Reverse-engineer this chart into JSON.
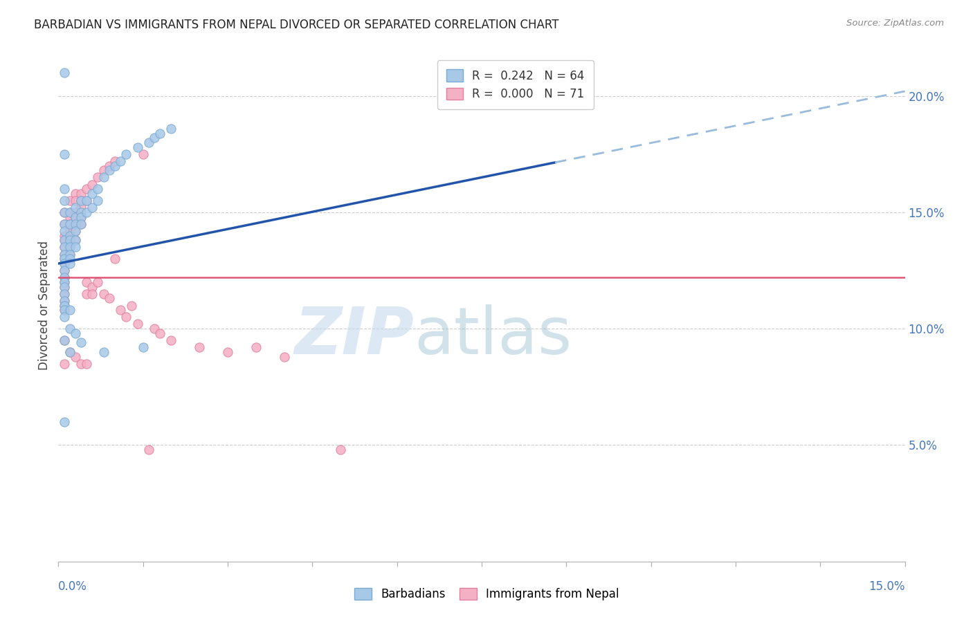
{
  "title": "BARBADIAN VS IMMIGRANTS FROM NEPAL DIVORCED OR SEPARATED CORRELATION CHART",
  "source": "Source: ZipAtlas.com",
  "ylabel": "Divorced or Separated",
  "legend_blue_R": "0.242",
  "legend_blue_N": "64",
  "legend_pink_R": "0.000",
  "legend_pink_N": "71",
  "blue_color": "#A8C8E8",
  "blue_edge_color": "#7AAAD0",
  "pink_color": "#F4B0C4",
  "pink_edge_color": "#E080A0",
  "trend_blue_color": "#2255AA",
  "trend_blue_dash_color": "#99BBDD",
  "trend_pink_color": "#DD4466",
  "right_ytick_labels": [
    "5.0%",
    "10.0%",
    "15.0%",
    "20.0%"
  ],
  "right_ytick_values": [
    0.05,
    0.1,
    0.15,
    0.2
  ],
  "xmin": 0.0,
  "xmax": 0.15,
  "ymin": 0.0,
  "ymax": 0.22,
  "trend_blue_x0": 0.0,
  "trend_blue_y0": 0.128,
  "trend_blue_x1": 0.15,
  "trend_blue_y1": 0.202,
  "trend_blue_solid_end": 0.088,
  "trend_pink_y": 0.122,
  "watermark_zip_color": "#C0D8EC",
  "watermark_atlas_color": "#90B8CC",
  "blue_pts": [
    [
      0.001,
      0.21
    ],
    [
      0.001,
      0.175
    ],
    [
      0.001,
      0.16
    ],
    [
      0.001,
      0.155
    ],
    [
      0.001,
      0.15
    ],
    [
      0.001,
      0.145
    ],
    [
      0.001,
      0.142
    ],
    [
      0.001,
      0.138
    ],
    [
      0.001,
      0.135
    ],
    [
      0.001,
      0.132
    ],
    [
      0.001,
      0.13
    ],
    [
      0.001,
      0.128
    ],
    [
      0.001,
      0.125
    ],
    [
      0.001,
      0.122
    ],
    [
      0.001,
      0.12
    ],
    [
      0.001,
      0.118
    ],
    [
      0.001,
      0.115
    ],
    [
      0.001,
      0.112
    ],
    [
      0.001,
      0.11
    ],
    [
      0.001,
      0.108
    ],
    [
      0.002,
      0.15
    ],
    [
      0.002,
      0.145
    ],
    [
      0.002,
      0.14
    ],
    [
      0.002,
      0.138
    ],
    [
      0.002,
      0.135
    ],
    [
      0.002,
      0.132
    ],
    [
      0.002,
      0.13
    ],
    [
      0.002,
      0.128
    ],
    [
      0.003,
      0.152
    ],
    [
      0.003,
      0.148
    ],
    [
      0.003,
      0.145
    ],
    [
      0.003,
      0.142
    ],
    [
      0.003,
      0.138
    ],
    [
      0.003,
      0.135
    ],
    [
      0.004,
      0.155
    ],
    [
      0.004,
      0.15
    ],
    [
      0.004,
      0.148
    ],
    [
      0.004,
      0.145
    ],
    [
      0.005,
      0.155
    ],
    [
      0.005,
      0.15
    ],
    [
      0.006,
      0.158
    ],
    [
      0.006,
      0.152
    ],
    [
      0.007,
      0.16
    ],
    [
      0.007,
      0.155
    ],
    [
      0.008,
      0.165
    ],
    [
      0.008,
      0.09
    ],
    [
      0.009,
      0.168
    ],
    [
      0.01,
      0.17
    ],
    [
      0.011,
      0.172
    ],
    [
      0.012,
      0.175
    ],
    [
      0.014,
      0.178
    ],
    [
      0.015,
      0.092
    ],
    [
      0.016,
      0.18
    ],
    [
      0.017,
      0.182
    ],
    [
      0.018,
      0.184
    ],
    [
      0.02,
      0.186
    ],
    [
      0.001,
      0.095
    ],
    [
      0.002,
      0.1
    ],
    [
      0.003,
      0.098
    ],
    [
      0.001,
      0.105
    ],
    [
      0.002,
      0.108
    ],
    [
      0.001,
      0.06
    ],
    [
      0.004,
      0.094
    ],
    [
      0.002,
      0.09
    ]
  ],
  "pink_pts": [
    [
      0.001,
      0.15
    ],
    [
      0.001,
      0.145
    ],
    [
      0.001,
      0.14
    ],
    [
      0.001,
      0.138
    ],
    [
      0.001,
      0.135
    ],
    [
      0.001,
      0.132
    ],
    [
      0.001,
      0.13
    ],
    [
      0.001,
      0.128
    ],
    [
      0.001,
      0.125
    ],
    [
      0.001,
      0.122
    ],
    [
      0.001,
      0.12
    ],
    [
      0.001,
      0.118
    ],
    [
      0.001,
      0.115
    ],
    [
      0.001,
      0.112
    ],
    [
      0.001,
      0.11
    ],
    [
      0.001,
      0.108
    ],
    [
      0.002,
      0.155
    ],
    [
      0.002,
      0.15
    ],
    [
      0.002,
      0.148
    ],
    [
      0.002,
      0.145
    ],
    [
      0.002,
      0.142
    ],
    [
      0.002,
      0.138
    ],
    [
      0.002,
      0.135
    ],
    [
      0.002,
      0.132
    ],
    [
      0.003,
      0.158
    ],
    [
      0.003,
      0.155
    ],
    [
      0.003,
      0.15
    ],
    [
      0.003,
      0.148
    ],
    [
      0.003,
      0.145
    ],
    [
      0.003,
      0.142
    ],
    [
      0.003,
      0.138
    ],
    [
      0.004,
      0.158
    ],
    [
      0.004,
      0.155
    ],
    [
      0.004,
      0.152
    ],
    [
      0.004,
      0.148
    ],
    [
      0.004,
      0.145
    ],
    [
      0.005,
      0.16
    ],
    [
      0.005,
      0.155
    ],
    [
      0.005,
      0.12
    ],
    [
      0.005,
      0.115
    ],
    [
      0.006,
      0.162
    ],
    [
      0.006,
      0.118
    ],
    [
      0.006,
      0.115
    ],
    [
      0.007,
      0.165
    ],
    [
      0.007,
      0.12
    ],
    [
      0.008,
      0.168
    ],
    [
      0.008,
      0.115
    ],
    [
      0.009,
      0.17
    ],
    [
      0.009,
      0.113
    ],
    [
      0.01,
      0.172
    ],
    [
      0.01,
      0.13
    ],
    [
      0.011,
      0.108
    ],
    [
      0.012,
      0.105
    ],
    [
      0.013,
      0.11
    ],
    [
      0.014,
      0.102
    ],
    [
      0.015,
      0.175
    ],
    [
      0.016,
      0.048
    ],
    [
      0.017,
      0.1
    ],
    [
      0.018,
      0.098
    ],
    [
      0.02,
      0.095
    ],
    [
      0.025,
      0.092
    ],
    [
      0.03,
      0.09
    ],
    [
      0.035,
      0.092
    ],
    [
      0.04,
      0.088
    ],
    [
      0.05,
      0.048
    ],
    [
      0.001,
      0.095
    ],
    [
      0.002,
      0.09
    ],
    [
      0.001,
      0.085
    ],
    [
      0.003,
      0.088
    ],
    [
      0.004,
      0.085
    ],
    [
      0.005,
      0.085
    ]
  ]
}
